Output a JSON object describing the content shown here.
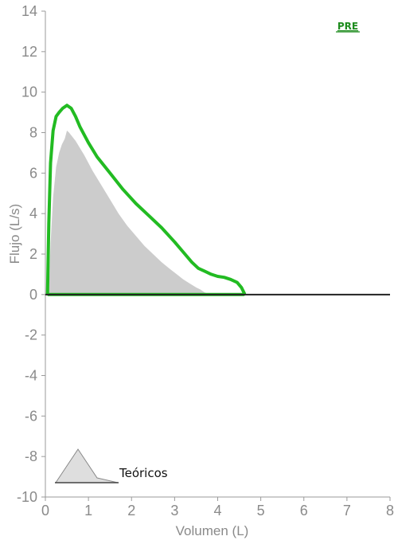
{
  "chart_data": {
    "type": "line",
    "xlabel": "Volumen (L)",
    "ylabel": "Flujo (L/s)",
    "xlim": [
      0,
      8
    ],
    "ylim": [
      -10,
      14
    ],
    "x_ticks": [
      "0",
      "1",
      "2",
      "3",
      "4",
      "5",
      "6",
      "7",
      "8"
    ],
    "y_ticks": [
      "-10",
      "-8",
      "-6",
      "-4",
      "-2",
      "0",
      "2",
      "4",
      "6",
      "8",
      "10",
      "12",
      "14"
    ],
    "pre_label": "PRE",
    "series": [
      {
        "kind": "area",
        "color": "#cccccc",
        "x": [
          0.08,
          0.12,
          0.18,
          0.25,
          0.32,
          0.38,
          0.45,
          0.5,
          0.55,
          0.7,
          0.9,
          1.1,
          1.3,
          1.5,
          1.7,
          1.9,
          2.1,
          2.3,
          2.5,
          2.7,
          2.9,
          3.05,
          3.2,
          3.35,
          3.5,
          3.6,
          3.7,
          3.8,
          3.85
        ],
        "y": [
          0.0,
          2.5,
          4.8,
          6.3,
          7.0,
          7.4,
          7.7,
          8.1,
          8.0,
          7.6,
          6.9,
          6.1,
          5.4,
          4.7,
          4.0,
          3.4,
          2.9,
          2.4,
          2.0,
          1.6,
          1.25,
          1.0,
          0.75,
          0.55,
          0.35,
          0.25,
          0.1,
          0.03,
          0.0
        ]
      },
      {
        "kind": "line",
        "color": "#22bb22",
        "x": [
          0.05,
          0.08,
          0.12,
          0.18,
          0.25,
          0.32,
          0.4,
          0.5,
          0.6,
          0.7,
          0.8,
          1.0,
          1.2,
          1.5,
          1.8,
          2.1,
          2.4,
          2.7,
          3.0,
          3.2,
          3.4,
          3.55,
          3.7,
          3.85,
          4.0,
          4.15,
          4.3,
          4.45,
          4.55,
          4.62,
          4.6,
          0.05
        ],
        "y": [
          0.0,
          3.5,
          6.5,
          8.1,
          8.8,
          9.0,
          9.2,
          9.35,
          9.2,
          8.8,
          8.3,
          7.5,
          6.8,
          6.0,
          5.2,
          4.5,
          3.9,
          3.3,
          2.6,
          2.1,
          1.6,
          1.3,
          1.15,
          1.0,
          0.9,
          0.85,
          0.75,
          0.6,
          0.35,
          0.05,
          0.0,
          0.0
        ]
      }
    ],
    "legend": {
      "label": "Teóricos",
      "position": "bottom-left"
    }
  }
}
